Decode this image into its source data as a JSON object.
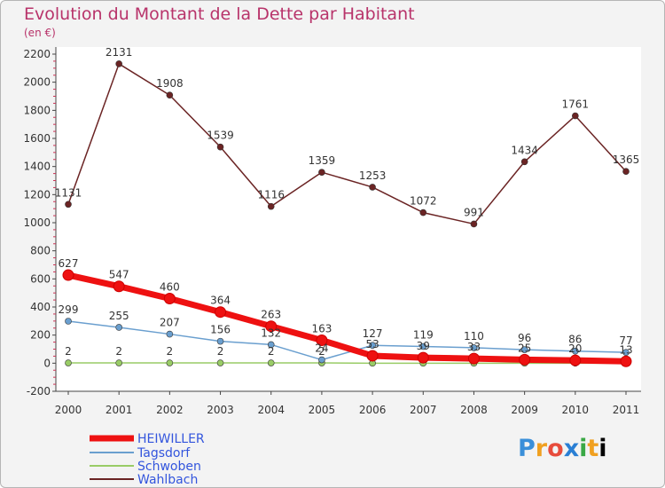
{
  "title": "Evolution du Montant de la Dette par Habitant",
  "subtitle": "(en €)",
  "logo_text": [
    "P",
    "r",
    "o",
    "x",
    "i",
    "t",
    "i"
  ],
  "chart_data": {
    "type": "line",
    "title": "Evolution du Montant de la Dette par Habitant",
    "ylabel": "(en €)",
    "x": [
      "2000",
      "2001",
      "2002",
      "2003",
      "2004",
      "2005",
      "2006",
      "2007",
      "2008",
      "2009",
      "2010",
      "2011"
    ],
    "yticks": [
      -200,
      0,
      200,
      400,
      600,
      800,
      1000,
      1200,
      1400,
      1600,
      1800,
      2000,
      2200
    ],
    "ylim": [
      -200,
      2200
    ],
    "grid": false,
    "legend_position": "bottom-left",
    "series": [
      {
        "name": "HEIWILLER",
        "color": "#ee1111",
        "values": [
          627,
          547,
          460,
          364,
          263,
          163,
          53,
          39,
          33,
          25,
          20,
          13
        ],
        "labels": [
          "627",
          "547",
          "460",
          "364",
          "263",
          "163",
          "53",
          "39",
          "33",
          "25",
          "20",
          "13"
        ]
      },
      {
        "name": "Tagsdorf",
        "color": "#6a9fcf",
        "values": [
          299,
          255,
          207,
          156,
          132,
          24,
          127,
          119,
          110,
          96,
          86,
          77
        ],
        "labels": [
          "299",
          "255",
          "207",
          "156",
          "132",
          "24",
          "127",
          "119",
          "110",
          "96",
          "86",
          "77"
        ]
      },
      {
        "name": "Schwoben",
        "color": "#99cc66",
        "values": [
          2,
          2,
          2,
          2,
          2,
          2,
          0,
          0,
          0,
          0,
          0,
          0
        ],
        "labels": [
          "2",
          "2",
          "2",
          "2",
          "2",
          "2",
          "",
          "",
          "",
          "",
          "",
          ""
        ]
      },
      {
        "name": "Wahlbach",
        "color": "#6b2424",
        "values": [
          1131,
          2131,
          1908,
          1539,
          1116,
          1359,
          1253,
          1072,
          991,
          1434,
          1761,
          1365
        ],
        "labels": [
          "1131",
          "2131",
          "1908",
          "1539",
          "1116",
          "1359",
          "1253",
          "1072",
          "991",
          "1434",
          "1761",
          "1365"
        ]
      }
    ]
  }
}
